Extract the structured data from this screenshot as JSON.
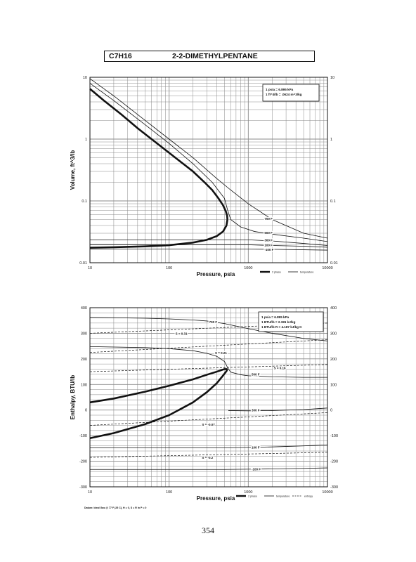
{
  "header": {
    "formula": "C7H16",
    "name": "2-2-DIMETHYLPENTANE"
  },
  "page_number": "354",
  "colors": {
    "ink": "#111111",
    "grid": "#8a8a8a",
    "background": "#ffffff"
  },
  "chart_data": [
    {
      "type": "line",
      "xlabel": "Pressure,  psia",
      "ylabel": "Volume,  ft^3/lb",
      "xscale": "log",
      "yscale": "log",
      "xlim": [
        10,
        10000
      ],
      "ylim": [
        0.01,
        10
      ],
      "x_ticks": [
        10,
        100,
        1000,
        10000
      ],
      "x_tick_labels": [
        "10",
        "100",
        "1000",
        "10000"
      ],
      "y_ticks": [
        0.01,
        0.1,
        1,
        10
      ],
      "y_tick_labels": [
        "0.01",
        "0.1",
        "1",
        "10"
      ],
      "grid": true,
      "note_box": {
        "position": "top-right",
        "lines": [
          "1 psia  =  6.895 kPa",
          "1 ft^3/lb  =  .0624 m^3/kg"
        ]
      },
      "legend": {
        "position": "bottom-right",
        "entries": [
          "2 phase",
          "temperature"
        ]
      },
      "curve_labels": [
        {
          "text": "700 F",
          "x": 1600,
          "y": 0.052
        },
        {
          "text": "500 F",
          "x": 1600,
          "y": 0.031
        },
        {
          "text": "300 F",
          "x": 1600,
          "y": 0.0235
        },
        {
          "text": "100 F",
          "x": 1600,
          "y": 0.0195
        },
        {
          "text": "-100 F",
          "x": 1600,
          "y": 0.0165
        }
      ],
      "series": [
        {
          "style": "2 phase",
          "x": [
            10,
            15,
            25,
            40,
            60,
            100,
            150,
            200,
            280,
            350,
            420,
            480,
            520,
            540,
            545
          ],
          "y": [
            6.5,
            4.2,
            2.5,
            1.5,
            1.0,
            0.6,
            0.4,
            0.3,
            0.2,
            0.15,
            0.11,
            0.085,
            0.068,
            0.058,
            0.05
          ]
        },
        {
          "style": "2 phase",
          "x": [
            10,
            20,
            50,
            100,
            200,
            300,
            400,
            480,
            530,
            545
          ],
          "y": [
            0.0175,
            0.0178,
            0.0184,
            0.0192,
            0.0212,
            0.0235,
            0.027,
            0.032,
            0.04,
            0.05
          ]
        },
        {
          "style": "temperature",
          "x": [
            10,
            20,
            50,
            100,
            200,
            400,
            600,
            1000,
            2000,
            5000,
            10000
          ],
          "y": [
            9.5,
            5.0,
            2.0,
            1.0,
            0.5,
            0.23,
            0.15,
            0.09,
            0.05,
            0.03,
            0.025
          ]
        },
        {
          "style": "temperature",
          "x": [
            10,
            20,
            50,
            100,
            200,
            350,
            500,
            550,
            600,
            800,
            1200,
            2000,
            5000,
            10000
          ],
          "y": [
            8.0,
            4.2,
            1.7,
            0.85,
            0.4,
            0.2,
            0.11,
            0.07,
            0.05,
            0.038,
            0.032,
            0.029,
            0.025,
            0.022
          ]
        },
        {
          "style": "temperature",
          "x": [
            10,
            1000,
            2000,
            5000,
            10000
          ],
          "y": [
            0.0235,
            0.0235,
            0.0225,
            0.0205,
            0.019
          ]
        },
        {
          "style": "temperature",
          "x": [
            10,
            1000,
            2000,
            5000,
            10000
          ],
          "y": [
            0.0195,
            0.0195,
            0.019,
            0.0185,
            0.0178
          ]
        },
        {
          "style": "temperature",
          "x": [
            10,
            1000,
            2000,
            5000,
            10000
          ],
          "y": [
            0.0166,
            0.0166,
            0.0165,
            0.0162,
            0.016
          ]
        }
      ]
    },
    {
      "type": "line",
      "xlabel": "Pressure,  psia",
      "ylabel": "Enthalpy,  BTU/lb",
      "xscale": "log",
      "xlim": [
        10,
        10000
      ],
      "ylim": [
        -300,
        400
      ],
      "x_ticks": [
        10,
        100,
        1000,
        10000
      ],
      "x_tick_labels": [
        "10",
        "100",
        "1000",
        "10000"
      ],
      "y_ticks": [
        -300,
        -200,
        -100,
        0,
        100,
        200,
        300,
        400
      ],
      "y_tick_labels": [
        "-300",
        "-200",
        "-100",
        "0",
        "100",
        "200",
        "300",
        "400"
      ],
      "grid": true,
      "note_box": {
        "position": "top-right",
        "lines": [
          "1 psia  =  6.895 kPa",
          "1 BTU/lb  =  2.326 kJ/kg",
          "1 BTU/lb R  =  4.187 kJ/kg K"
        ]
      },
      "legend": {
        "position": "bottom-right",
        "entries": [
          "2 phase",
          "temperature",
          "entropy"
        ]
      },
      "footnote": "Datum: Ideal Gas @ 77 F (25 C),  H = 0,  S = R ln P = 0",
      "curve_labels": [
        {
          "text": "700 F",
          "x": 320,
          "y": 345
        },
        {
          "text": "500 F",
          "x": 1100,
          "y": 140
        },
        {
          "text": "300 F",
          "x": 1100,
          "y": 0
        },
        {
          "text": "100 F",
          "x": 1100,
          "y": -145
        },
        {
          "text": "-100 F",
          "x": 1100,
          "y": -230
        },
        {
          "text": "S = 0.31",
          "x": 120,
          "y": 300
        },
        {
          "text": "S = 0.21",
          "x": 380,
          "y": 225
        },
        {
          "text": "S = 0.16",
          "x": 2100,
          "y": 165
        },
        {
          "text": "S = -0.07",
          "x": 260,
          "y": -55
        },
        {
          "text": "S = -0.2",
          "x": 260,
          "y": -185
        }
      ],
      "series": [
        {
          "style": "2 phase",
          "x": [
            10,
            20,
            50,
            100,
            200,
            300,
            400,
            500,
            545
          ],
          "y": [
            30,
            45,
            72,
            95,
            120,
            138,
            150,
            160,
            160
          ]
        },
        {
          "style": "2 phase",
          "x": [
            10,
            20,
            50,
            100,
            200,
            300,
            400,
            480,
            530,
            545
          ],
          "y": [
            -110,
            -90,
            -55,
            -20,
            30,
            70,
            105,
            135,
            152,
            160
          ]
        },
        {
          "style": "temperature",
          "x": [
            10,
            50,
            100,
            200,
            300,
            500,
            1000,
            2000,
            5000,
            10000
          ],
          "y": [
            362,
            359,
            356,
            352,
            348,
            338,
            318,
            300,
            280,
            270
          ]
        },
        {
          "style": "temperature",
          "x": [
            10,
            50,
            100,
            200,
            300,
            400,
            500,
            550,
            600,
            800,
            1000,
            2000,
            5000,
            10000
          ],
          "y": [
            248,
            244,
            240,
            232,
            222,
            210,
            190,
            165,
            148,
            138,
            134,
            130,
            128,
            128
          ]
        },
        {
          "style": "temperature",
          "x": [
            560,
            1000,
            2000,
            5000,
            10000
          ],
          "y": [
            -2,
            -3,
            -2,
            2,
            8
          ]
        },
        {
          "style": "temperature",
          "x": [
            10,
            500,
            1000,
            2000,
            5000,
            10000
          ],
          "y": [
            -148,
            -148,
            -146,
            -144,
            -140,
            -136
          ]
        },
        {
          "style": "temperature",
          "x": [
            10,
            500,
            1000,
            2000,
            5000,
            10000
          ],
          "y": [
            -232,
            -232,
            -231,
            -230,
            -228,
            -226
          ]
        },
        {
          "style": "entropy",
          "x": [
            10,
            10000
          ],
          "y": [
            300,
            340
          ]
        },
        {
          "style": "entropy",
          "x": [
            10,
            10000
          ],
          "y": [
            225,
            275
          ]
        },
        {
          "style": "entropy",
          "x": [
            10,
            10000
          ],
          "y": [
            150,
            178
          ]
        },
        {
          "style": "entropy",
          "x": [
            10,
            10000
          ],
          "y": [
            -60,
            -10
          ]
        },
        {
          "style": "entropy",
          "x": [
            10,
            10000
          ],
          "y": [
            -185,
            -165
          ]
        }
      ]
    }
  ]
}
